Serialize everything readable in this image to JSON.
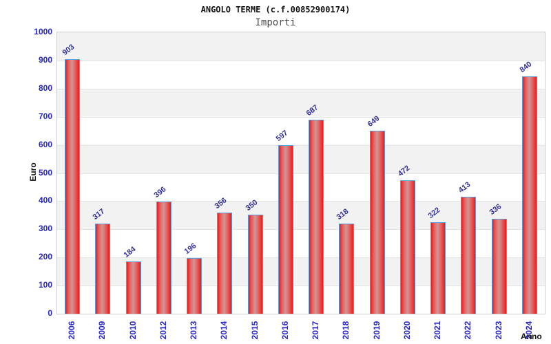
{
  "chart_data": {
    "type": "bar",
    "title": "ANGOLO TERME (c.f.00852900174)",
    "subtitle": "Importi",
    "xlabel": "Anno",
    "ylabel": "Euro",
    "categories": [
      "2006",
      "2009",
      "2010",
      "2012",
      "2013",
      "2014",
      "2015",
      "2016",
      "2017",
      "2018",
      "2019",
      "2020",
      "2021",
      "2022",
      "2023",
      "2024"
    ],
    "values": [
      903,
      317,
      184,
      396,
      196,
      356,
      350,
      597,
      687,
      318,
      649,
      472,
      322,
      413,
      336,
      840
    ],
    "ylim": [
      0,
      1000
    ],
    "yticks": [
      0,
      100,
      200,
      300,
      400,
      500,
      600,
      700,
      800,
      900,
      1000
    ],
    "grid": true,
    "legend_position": "none",
    "band_colors": [
      "#f2f2f2",
      "#ffffff"
    ],
    "bar_fill_edge_color": "#ea1b1b",
    "bar_fill_center_color": "#d29595",
    "bar_border_color": "#5a9fdc",
    "value_label_color": "#333399",
    "tick_label_color": "#2626cb",
    "axis_title_color": "#111111",
    "plot_border_color": "#cccccc"
  }
}
